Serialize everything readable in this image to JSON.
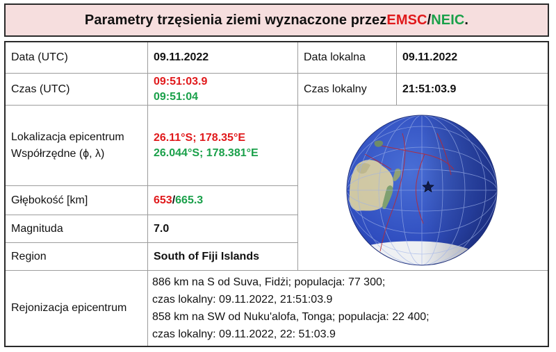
{
  "title": {
    "prefix": "Parametry trzęsienia ziemi wyznaczone przez ",
    "emsc": "EMSC",
    "slash": "/",
    "neic": "NEIC",
    "suffix": "."
  },
  "colors": {
    "emsc": "#e0191b",
    "neic": "#1aa04a",
    "title_bg": "#f6dede"
  },
  "rows": {
    "date_utc": {
      "label": "Data (UTC)",
      "value": "09.11.2022"
    },
    "date_local": {
      "label": "Data lokalna",
      "value": "09.11.2022"
    },
    "time_utc": {
      "label": "Czas (UTC)",
      "value_emsc": "09:51:03.9",
      "value_neic": "09:51:04"
    },
    "time_local": {
      "label": "Czas lokalny",
      "value": "21:51:03.9"
    },
    "location": {
      "label_line1": "Lokalizacja epicentrum",
      "label_line2": "Współrzędne (ϕ, λ)",
      "value_emsc": "26.11°S; 178.35°E",
      "value_neic": "26.044°S; 178.381°E"
    },
    "depth": {
      "label": "Głębokość [km]",
      "value_emsc": "653",
      "separator": "/",
      "value_neic": "665.3"
    },
    "magnitude": {
      "label": "Magnituda",
      "value": "7.0"
    },
    "region": {
      "label": "Region",
      "value": "South of Fiji Islands"
    },
    "regionalization": {
      "label": "Rejonizacja epicentrum",
      "line1": "886 km na S od Suva, Fidżi; populacja: 77 300;",
      "line2": "czas lokalny: 09.11.2022, 21:51:03.9",
      "line3": "858 km na SW od Nuku'alofa, Tonga; populacja: 22 400;",
      "line4": "czas lokalny: 09.11.2022, 22: 51:03.9"
    }
  },
  "globe": {
    "icon": "globe-map-icon",
    "marker": "epicenter-star-icon"
  }
}
